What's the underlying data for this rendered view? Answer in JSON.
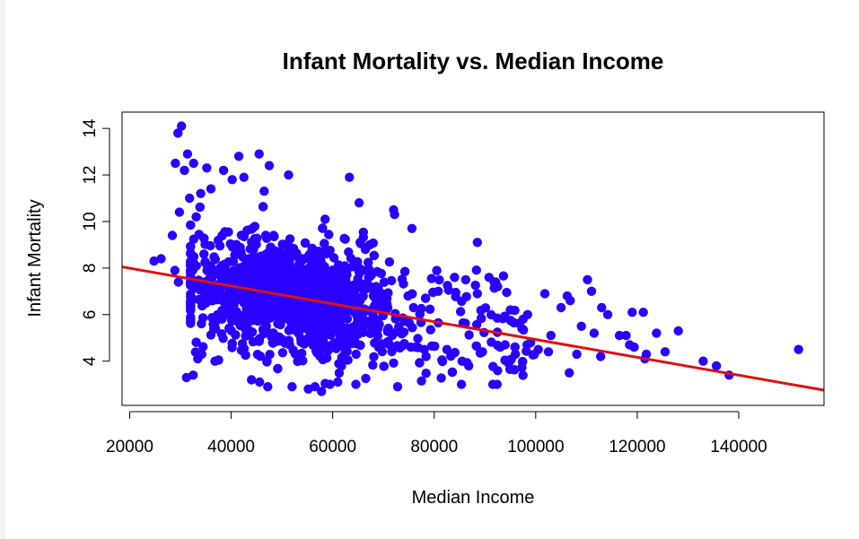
{
  "chart_data": {
    "type": "scatter",
    "title": "Infant Mortality vs. Median Income",
    "xlabel": "Median Income",
    "ylabel": "Infant Mortality",
    "xlim": [
      18500,
      156800
    ],
    "ylim": [
      2.1,
      14.7
    ],
    "xticks": [
      20000,
      40000,
      60000,
      80000,
      100000,
      120000,
      140000
    ],
    "xtick_labels": [
      "20000",
      "40000",
      "60000",
      "80000",
      "100000",
      "120000",
      "140000"
    ],
    "yticks": [
      4,
      6,
      8,
      10,
      12,
      14
    ],
    "ytick_labels": [
      "4",
      "6",
      "8",
      "10",
      "12",
      "14"
    ],
    "grid": false,
    "legend": "none",
    "point_color": "#2a00ff",
    "trendline_color": "#e01010",
    "trendline": {
      "intercept": 8.76,
      "slope": -3.83e-05
    },
    "series": [
      {
        "points": [
          [
            30200,
            14.1
          ],
          [
            29500,
            13.8
          ],
          [
            31400,
            12.9
          ],
          [
            29000,
            12.5
          ],
          [
            32600,
            12.5
          ],
          [
            30800,
            12.2
          ],
          [
            45500,
            12.9
          ],
          [
            41500,
            12.8
          ],
          [
            47500,
            12.4
          ],
          [
            51300,
            12.0
          ],
          [
            63300,
            11.9
          ],
          [
            38500,
            12.2
          ],
          [
            35200,
            12.3
          ],
          [
            40200,
            11.8
          ],
          [
            42500,
            11.9
          ],
          [
            36000,
            11.4
          ],
          [
            34000,
            11.2
          ],
          [
            46500,
            11.3
          ],
          [
            31800,
            11.0
          ],
          [
            65200,
            10.8
          ],
          [
            72000,
            10.5
          ],
          [
            72200,
            10.3
          ],
          [
            58500,
            10.1
          ],
          [
            75600,
            9.7
          ],
          [
            29800,
            10.4
          ],
          [
            33100,
            10.2
          ],
          [
            28400,
            9.4
          ],
          [
            88500,
            9.1
          ],
          [
            65400,
            9.1
          ],
          [
            67300,
            9.0
          ],
          [
            24800,
            8.3
          ],
          [
            26200,
            8.4
          ],
          [
            28900,
            7.9
          ],
          [
            29600,
            7.4
          ],
          [
            31200,
            3.3
          ],
          [
            32500,
            3.4
          ],
          [
            33400,
            4.1
          ],
          [
            34200,
            4.3
          ],
          [
            36800,
            4.0
          ],
          [
            44000,
            3.2
          ],
          [
            45600,
            3.1
          ],
          [
            47200,
            2.9
          ],
          [
            52000,
            2.9
          ],
          [
            55200,
            2.8
          ],
          [
            56500,
            2.9
          ],
          [
            57800,
            2.7
          ],
          [
            61000,
            3.1
          ],
          [
            72800,
            2.9
          ],
          [
            110200,
            7.5
          ],
          [
            111000,
            7.0
          ],
          [
            114200,
            6.0
          ],
          [
            113000,
            6.3
          ],
          [
            119000,
            6.1
          ],
          [
            121200,
            6.1
          ],
          [
            106200,
            6.8
          ],
          [
            106800,
            6.6
          ],
          [
            101800,
            6.9
          ],
          [
            105000,
            6.3
          ],
          [
            98400,
            6.0
          ],
          [
            109000,
            5.5
          ],
          [
            111500,
            5.2
          ],
          [
            116500,
            5.1
          ],
          [
            117800,
            5.1
          ],
          [
            118500,
            4.7
          ],
          [
            119400,
            4.6
          ],
          [
            121800,
            4.3
          ],
          [
            123800,
            5.2
          ],
          [
            128100,
            5.3
          ],
          [
            125500,
            4.4
          ],
          [
            121500,
            4.1
          ],
          [
            133000,
            4.0
          ],
          [
            135600,
            3.8
          ],
          [
            138100,
            3.4
          ],
          [
            151800,
            4.5
          ],
          [
            106600,
            3.5
          ],
          [
            112800,
            4.2
          ],
          [
            102500,
            4.4
          ],
          [
            108100,
            4.3
          ],
          [
            96000,
            4.3
          ],
          [
            100500,
            4.5
          ],
          [
            95000,
            6.2
          ],
          [
            97500,
            5.8
          ],
          [
            103000,
            5.1
          ],
          [
            99000,
            4.8
          ],
          [
            84000,
            7.6
          ],
          [
            86200,
            7.5
          ],
          [
            90800,
            7.6
          ],
          [
            91800,
            7.4
          ],
          [
            92500,
            7.2
          ],
          [
            80800,
            7.0
          ],
          [
            85500,
            4.0
          ],
          [
            86800,
            3.8
          ],
          [
            78400,
            4.2
          ],
          [
            82500,
            4.5
          ],
          [
            89500,
            4.4
          ],
          [
            93000,
            4.6
          ]
        ]
      }
    ]
  }
}
